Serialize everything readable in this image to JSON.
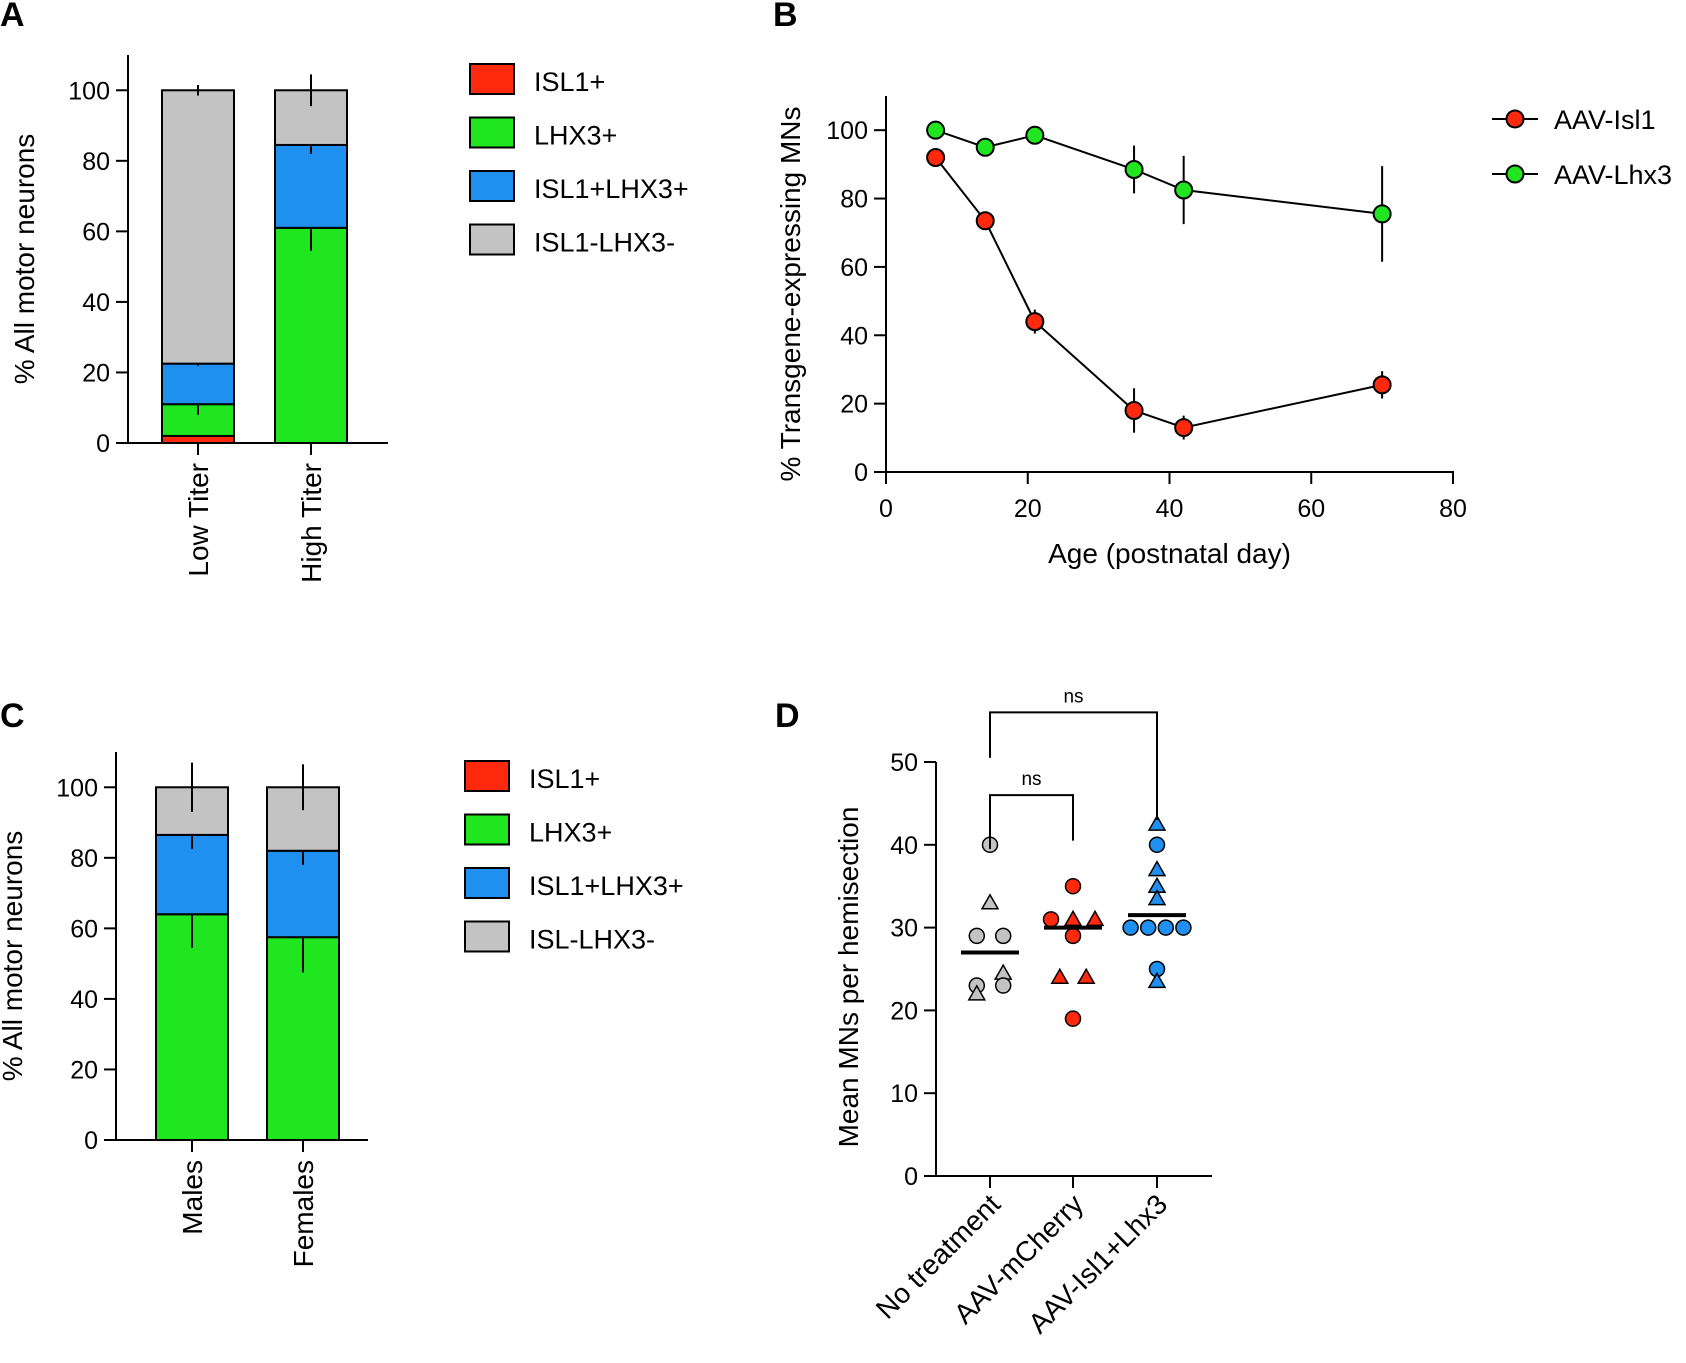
{
  "panels": {
    "A": {
      "letter": "A"
    },
    "B": {
      "letter": "B"
    },
    "C": {
      "letter": "C"
    },
    "D": {
      "letter": "D"
    }
  },
  "chart_data": [
    {
      "id": "A",
      "type": "bar",
      "stacked": true,
      "ylabel": "% All motor neurons",
      "xlabel": "",
      "ylim": [
        0,
        110
      ],
      "yticks": [
        0,
        20,
        40,
        60,
        80,
        100
      ],
      "categories": [
        "Low Titer",
        "High Titer"
      ],
      "series": [
        {
          "name": "ISL1+",
          "color": "#ff2a0e",
          "values": [
            2,
            0
          ],
          "errors": [
            0,
            0
          ]
        },
        {
          "name": "LHX3+",
          "color": "#1fe61f",
          "values": [
            9,
            61
          ],
          "errors": [
            3,
            6.5
          ]
        },
        {
          "name": "ISL1+LHX3+",
          "color": "#1f8ff0",
          "values": [
            11.5,
            23.5
          ],
          "errors": [
            0.6,
            2.5
          ]
        },
        {
          "name": "ISL1-LHX3-",
          "color": "#c3c3c3",
          "values": [
            77.5,
            15.5
          ],
          "errors": [
            1.5,
            4.5
          ]
        }
      ],
      "legend": [
        "ISL1+",
        "LHX3+",
        "ISL1+LHX3+",
        "ISL1-LHX3-"
      ]
    },
    {
      "id": "B",
      "type": "line",
      "xlabel": "Age (postnatal day)",
      "ylabel": "% Transgene-expressing MNs",
      "xlim": [
        0,
        80
      ],
      "ylim": [
        0,
        110
      ],
      "xticks": [
        0,
        20,
        40,
        60,
        80
      ],
      "yticks": [
        0,
        20,
        40,
        60,
        80,
        100
      ],
      "series": [
        {
          "name": "AAV-Isl1",
          "color": "#ff2a0e",
          "x": [
            7,
            14,
            21,
            35,
            42,
            70
          ],
          "y": [
            92,
            73.5,
            44,
            18,
            13,
            25.5
          ],
          "errors": [
            0,
            1.5,
            3.5,
            6.5,
            3.5,
            4
          ]
        },
        {
          "name": "AAV-Lhx3",
          "color": "#1fe61f",
          "x": [
            7,
            14,
            21,
            35,
            42,
            70
          ],
          "y": [
            100,
            95,
            98.5,
            88.5,
            82.5,
            75.5
          ],
          "errors": [
            0,
            0,
            0,
            7,
            10,
            14
          ]
        }
      ],
      "legend": [
        "AAV-Isl1",
        "AAV-Lhx3"
      ]
    },
    {
      "id": "C",
      "type": "bar",
      "stacked": true,
      "ylabel": "% All motor neurons",
      "xlabel": "",
      "ylim": [
        0,
        110
      ],
      "yticks": [
        0,
        20,
        40,
        60,
        80,
        100
      ],
      "categories": [
        "Males",
        "Females"
      ],
      "series": [
        {
          "name": "ISL1+",
          "color": "#ff2a0e",
          "values": [
            0,
            0
          ],
          "errors": [
            0,
            0
          ]
        },
        {
          "name": "LHX3+",
          "color": "#1fe61f",
          "values": [
            64,
            57.5
          ],
          "errors": [
            9.5,
            10
          ]
        },
        {
          "name": "ISL1+LHX3+",
          "color": "#1f8ff0",
          "values": [
            22.5,
            24.5
          ],
          "errors": [
            4,
            4
          ]
        },
        {
          "name": "ISL-LHX3-",
          "color": "#c3c3c3",
          "values": [
            13.5,
            18
          ],
          "errors": [
            7,
            6.5
          ]
        }
      ],
      "legend": [
        "ISL1+",
        "LHX3+",
        "ISL1+LHX3+",
        "ISL-LHX3-"
      ]
    },
    {
      "id": "D",
      "type": "scatter",
      "ylabel": "Mean MNs per hemisection",
      "xlabel": "",
      "ylim": [
        0,
        50
      ],
      "yticks": [
        0,
        10,
        20,
        30,
        40,
        50
      ],
      "categories": [
        "No treatment",
        "AAV-mCherry",
        "AAV-Isl1+Lhx3"
      ],
      "groups": [
        {
          "name": "No treatment",
          "color": "#c3c3c3",
          "mean": 27,
          "points": [
            {
              "v": 40,
              "shape": "circle",
              "off": 0
            },
            {
              "v": 33,
              "shape": "triangle",
              "off": 0
            },
            {
              "v": 29,
              "shape": "circle",
              "off": -0.6
            },
            {
              "v": 29,
              "shape": "circle",
              "off": 0.6
            },
            {
              "v": 24.5,
              "shape": "triangle",
              "off": 0.6
            },
            {
              "v": 23,
              "shape": "circle",
              "off": -0.6
            },
            {
              "v": 23,
              "shape": "circle",
              "off": 0.6
            },
            {
              "v": 22,
              "shape": "triangle",
              "off": -0.6
            }
          ]
        },
        {
          "name": "AAV-mCherry",
          "color": "#ff2a0e",
          "mean": 30,
          "points": [
            {
              "v": 35,
              "shape": "circle",
              "off": 0
            },
            {
              "v": 31,
              "shape": "circle",
              "off": -1
            },
            {
              "v": 31,
              "shape": "triangle",
              "off": 0
            },
            {
              "v": 31,
              "shape": "triangle",
              "off": 1
            },
            {
              "v": 29,
              "shape": "circle",
              "off": 0
            },
            {
              "v": 24,
              "shape": "triangle",
              "off": -0.6
            },
            {
              "v": 24,
              "shape": "triangle",
              "off": 0.6
            },
            {
              "v": 19,
              "shape": "circle",
              "off": 0
            }
          ]
        },
        {
          "name": "AAV-Isl1+Lhx3",
          "color": "#1f8ff0",
          "mean": 31.5,
          "points": [
            {
              "v": 42.5,
              "shape": "triangle",
              "off": 0
            },
            {
              "v": 40,
              "shape": "circle",
              "off": 0
            },
            {
              "v": 37,
              "shape": "triangle",
              "off": 0
            },
            {
              "v": 35,
              "shape": "triangle",
              "off": 0
            },
            {
              "v": 33.5,
              "shape": "triangle",
              "off": 0
            },
            {
              "v": 30,
              "shape": "circle",
              "off": -1.2
            },
            {
              "v": 30,
              "shape": "circle",
              "off": -0.4
            },
            {
              "v": 30,
              "shape": "circle",
              "off": 0.4
            },
            {
              "v": 30,
              "shape": "circle",
              "off": 1.2
            },
            {
              "v": 25,
              "shape": "circle",
              "off": 0
            },
            {
              "v": 23.5,
              "shape": "triangle",
              "off": 0
            }
          ]
        }
      ],
      "comparisons": [
        {
          "from": "No treatment",
          "to": "AAV-mCherry",
          "label": "ns",
          "y": 46,
          "left_end": 39.5,
          "right_end": 40.5
        },
        {
          "from": "No treatment",
          "to": "AAV-Isl1+Lhx3",
          "label": "ns",
          "y": 56,
          "left_end": 50.5,
          "right_end": 43
        }
      ]
    }
  ]
}
